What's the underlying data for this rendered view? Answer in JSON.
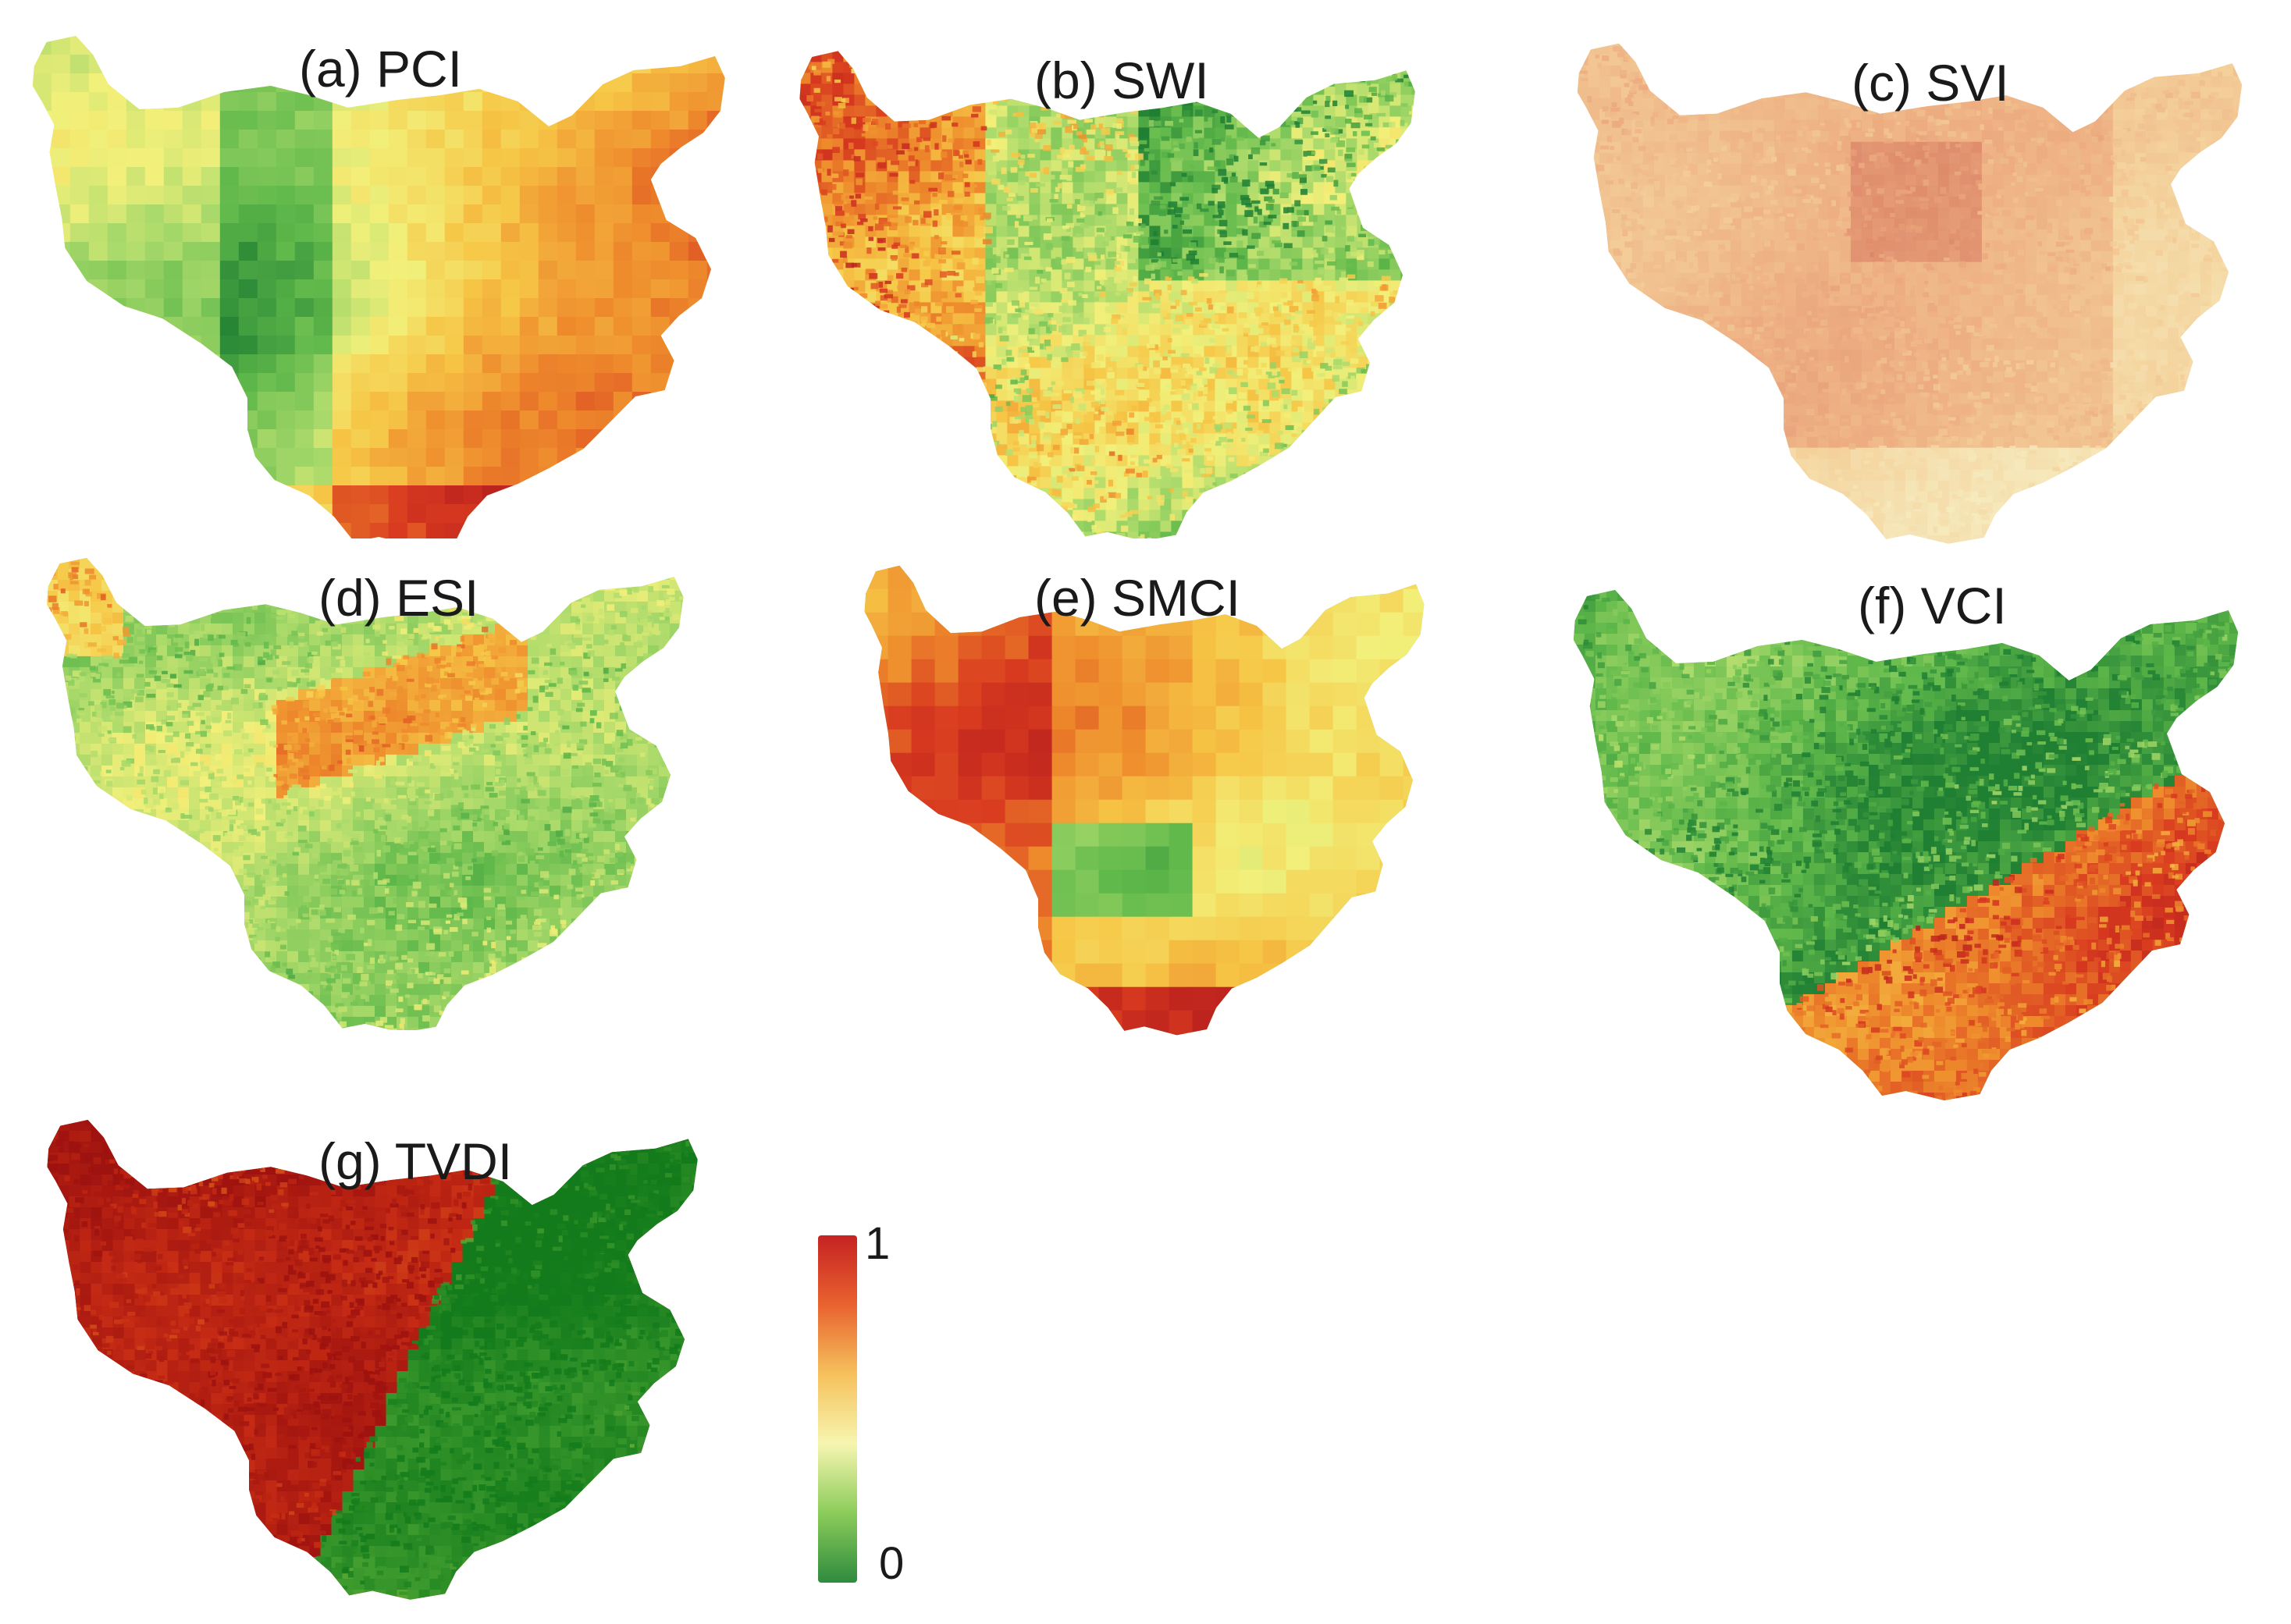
{
  "figure": {
    "panels": [
      {
        "id": "a",
        "title": "(a) PCI",
        "pattern": "coarse-pixels",
        "palette": "mixed-yellow"
      },
      {
        "id": "b",
        "title": "(b) SWI",
        "pattern": "fine-texture",
        "palette": "mixed-yellow"
      },
      {
        "id": "c",
        "title": "(c) SVI",
        "pattern": "fine-texture",
        "palette": "pale-orange"
      },
      {
        "id": "d",
        "title": "(d) ESI",
        "pattern": "fine-texture",
        "palette": "light-green"
      },
      {
        "id": "e",
        "title": "(e) SMCI",
        "pattern": "coarse-pixels",
        "palette": "yellow-orange"
      },
      {
        "id": "f",
        "title": "(f) VCI",
        "pattern": "fine-texture",
        "palette": "green-to-red-band"
      },
      {
        "id": "g",
        "title": "(g) TVDI",
        "pattern": "fine-texture",
        "palette": "red-to-green-band"
      }
    ],
    "colorbar": {
      "max_label": "1",
      "min_label": "0",
      "colors": [
        "#2e8b3e",
        "#8ccc5a",
        "#f7f5b0",
        "#f6c15c",
        "#e9622f",
        "#c62222"
      ]
    }
  }
}
